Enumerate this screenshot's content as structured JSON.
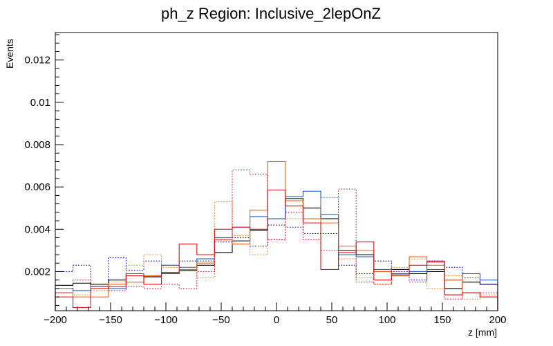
{
  "chart_data": {
    "type": "step-histogram",
    "title": "ph_z Region: Inclusive_2lepOnZ",
    "xlabel": "z [mm]",
    "ylabel": "Events",
    "xlim": [
      -200,
      200
    ],
    "ylim": [
      0.00015,
      0.0133
    ],
    "bin_width": 16,
    "x": [
      -192,
      -176,
      -160,
      -144,
      -128,
      -112,
      -96,
      -80,
      -64,
      -48,
      -32,
      -16,
      0,
      16,
      32,
      48,
      64,
      80,
      96,
      112,
      128,
      144,
      160,
      176,
      192
    ],
    "x_ticks": [
      {
        "value": -200,
        "label": "−200"
      },
      {
        "value": -150,
        "label": "−150"
      },
      {
        "value": -100,
        "label": "−100"
      },
      {
        "value": -50,
        "label": "−50"
      },
      {
        "value": 0,
        "label": "0"
      },
      {
        "value": 50,
        "label": "50"
      },
      {
        "value": 100,
        "label": "100"
      },
      {
        "value": 150,
        "label": "150"
      },
      {
        "value": 200,
        "label": "200"
      }
    ],
    "y_ticks": [
      {
        "value": 0.002,
        "label": "0.002"
      },
      {
        "value": 0.004,
        "label": "0.004"
      },
      {
        "value": 0.006,
        "label": "0.006"
      },
      {
        "value": 0.008,
        "label": "0.008"
      },
      {
        "value": 0.01,
        "label": "0.01"
      },
      {
        "value": 0.012,
        "label": "0.012"
      }
    ],
    "grid": false,
    "legend": "none",
    "series": [
      {
        "color": "#000000",
        "dash": "solid",
        "values": [
          0.00135,
          0.00145,
          0.0014,
          0.0016,
          0.0019,
          0.00175,
          0.00195,
          0.00205,
          0.0023,
          0.0029,
          0.00345,
          0.00395,
          0.0045,
          0.00545,
          0.005,
          0.0045,
          0.003,
          0.0028,
          0.002,
          0.0021,
          0.0019,
          0.002,
          0.0012,
          0.0015,
          0.0014
        ]
      },
      {
        "color": "#0000dd",
        "dash": "dotted",
        "values": [
          0.002,
          0.0023,
          0.0013,
          0.00265,
          0.00205,
          0.0025,
          0.0023,
          0.0025,
          0.0025,
          0.0034,
          0.0036,
          0.0032,
          0.0042,
          0.0041,
          0.0038,
          0.0038,
          0.0023,
          0.0019,
          0.0025,
          0.002,
          0.0016,
          0.0025,
          0.0022,
          0.0017,
          0.0014
        ]
      },
      {
        "color": "#1f5fbf",
        "dash": "solid",
        "values": [
          0.0012,
          0.0011,
          0.0013,
          0.0012,
          0.0019,
          0.0018,
          0.0023,
          0.0022,
          0.0026,
          0.0036,
          0.0041,
          0.0046,
          0.0045,
          0.00555,
          0.0058,
          0.0047,
          0.0028,
          0.0027,
          0.0021,
          0.00185,
          0.002,
          0.0021,
          0.0016,
          0.0019,
          0.0016
        ]
      },
      {
        "color": "#e8601a",
        "dash": "solid",
        "values": [
          0.001,
          0.0008,
          0.0008,
          0.0014,
          0.0015,
          0.0018,
          0.0019,
          0.0021,
          0.0024,
          0.0035,
          0.0033,
          0.0049,
          0.0072,
          0.00535,
          0.0045,
          0.0043,
          0.0032,
          0.003,
          0.002,
          0.0018,
          0.0027,
          0.0023,
          0.0016,
          0.001,
          0.0008
        ]
      },
      {
        "color": "#f08020",
        "dash": "dotted",
        "values": [
          0.0012,
          0.0009,
          0.0011,
          0.0015,
          0.0023,
          0.0028,
          0.0022,
          0.0022,
          0.0017,
          0.0053,
          0.0037,
          0.0028,
          0.0035,
          0.0045,
          0.0045,
          0.0055,
          0.0026,
          0.0017,
          0.0014,
          0.0022,
          0.0026,
          0.0012,
          0.0018,
          0.0007,
          0.0009
        ]
      },
      {
        "color": "#e01010",
        "dash": "solid",
        "values": [
          0.0008,
          0.0003,
          0.0012,
          0.0013,
          0.0018,
          0.0014,
          0.0019,
          0.0033,
          0.0028,
          0.004,
          0.0041,
          0.004,
          0.00585,
          0.0051,
          0.0043,
          0.0021,
          0.0029,
          0.0034,
          0.0016,
          0.0019,
          0.0023,
          0.00245,
          0.0009,
          0.001,
          0.0008
        ]
      },
      {
        "color": "#d01040",
        "dash": "dotted",
        "values": [
          0.001,
          0.0016,
          0.0013,
          0.0011,
          0.0013,
          0.0012,
          0.0014,
          0.0012,
          0.002,
          0.0035,
          0.0068,
          0.0066,
          0.0035,
          0.0048,
          0.0035,
          0.003,
          0.0059,
          0.0015,
          0.0014,
          0.002,
          0.0015,
          0.0025,
          0.0007,
          0.001,
          0.001
        ]
      }
    ]
  }
}
